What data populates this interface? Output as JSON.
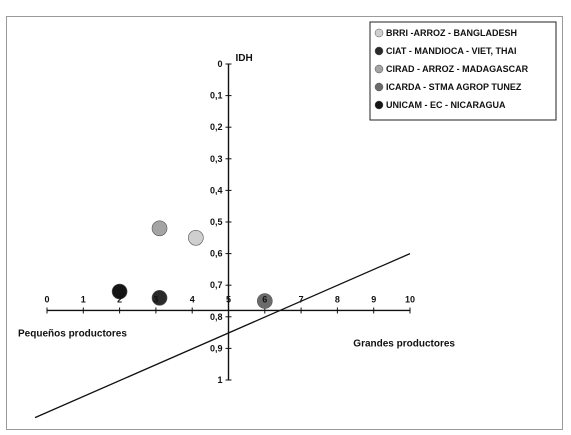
{
  "chart_data": {
    "type": "scatter",
    "x_ticks": [
      0,
      1,
      2,
      3,
      4,
      5,
      6,
      7,
      8,
      9,
      10
    ],
    "y_ticks": [
      "0",
      "0,1",
      "0,2",
      "0,3",
      "0,4",
      "0,5",
      "0,6",
      "0,7",
      "0,8",
      "0,9",
      "1"
    ],
    "xlim": [
      0,
      10
    ],
    "ylim": [
      0,
      1
    ],
    "y_axis_at_x": 5,
    "x_axis_at_y": 0.78,
    "y_axis_title": "IDH",
    "x_label_left": "Pequeños productores",
    "x_label_right": "Grandes productores",
    "legend_position": "top-right",
    "series": [
      {
        "name": "BRRI -ARROZ - BANGLADESH",
        "color": "#cfcfcf",
        "points": [
          {
            "x": 4.1,
            "y": 0.55
          }
        ]
      },
      {
        "name": "CIAT - MANDIOCA - VIET, THAI",
        "color": "#2a2a2a",
        "points": [
          {
            "x": 3.1,
            "y": 0.74
          }
        ]
      },
      {
        "name": "CIRAD - ARROZ - MADAGASCAR",
        "color": "#a4a4a4",
        "points": [
          {
            "x": 3.1,
            "y": 0.52
          }
        ]
      },
      {
        "name": "ICARDA - STMA AGROP TUNEZ",
        "color": "#6b6b6b",
        "points": [
          {
            "x": 6.0,
            "y": 0.75
          }
        ]
      },
      {
        "name": "UNICAM - EC - NICARAGUA",
        "color": "#151515",
        "points": [
          {
            "x": 2.0,
            "y": 0.72
          }
        ]
      }
    ],
    "trend_line": {
      "from": {
        "x": 0,
        "y": 1.1
      },
      "to": {
        "x": 10,
        "y": 0.6
      }
    }
  }
}
